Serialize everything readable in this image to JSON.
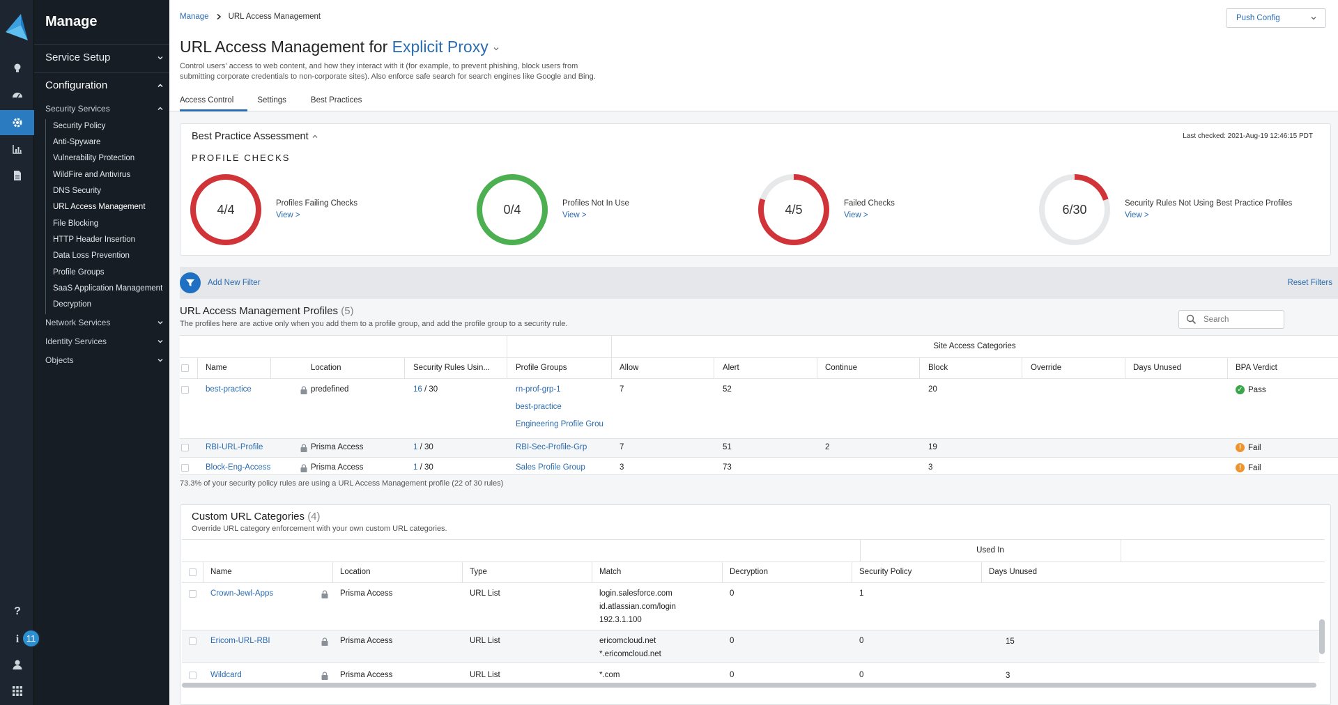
{
  "app": {
    "notification_count": "11"
  },
  "sidebar": {
    "title": "Manage",
    "service_setup": "Service Setup",
    "configuration": "Configuration",
    "security_services": "Security Services",
    "items": [
      "Security Policy",
      "Anti-Spyware",
      "Vulnerability Protection",
      "WildFire and Antivirus",
      "DNS Security",
      "URL Access Management",
      "File Blocking",
      "HTTP Header Insertion",
      "Data Loss Prevention",
      "Profile Groups",
      "SaaS Application Management",
      "Decryption"
    ],
    "network_services": "Network Services",
    "identity_services": "Identity Services",
    "objects": "Objects"
  },
  "header": {
    "breadcrumb_root": "Manage",
    "breadcrumb_current": "URL Access Management",
    "push_config": "Push Config",
    "title_prefix": "URL Access Management for",
    "title_scope": "Explicit Proxy",
    "description_line1": "Control users' access to web content, and how they interact with it (for example, to prevent phishing, block users from",
    "description_line2": "submitting corporate credentials to non-corporate sites). Also enforce safe search for search engines like Google and Bing.",
    "tabs": [
      "Access Control",
      "Settings",
      "Best Practices"
    ]
  },
  "bpa": {
    "title": "Best Practice Assessment",
    "last_checked": "Last checked: 2021-Aug-19 12:46:15 PDT",
    "section": "PROFILE CHECKS",
    "view_label": "View >",
    "checks": [
      {
        "value": "4/4",
        "label": "Profiles Failing Checks",
        "fraction": 1.0,
        "color": "#d13438"
      },
      {
        "value": "0/4",
        "label": "Profiles Not In Use",
        "fraction": 1.0,
        "color": "#4caf50"
      },
      {
        "value": "4/5",
        "label": "Failed Checks",
        "fraction": 0.8,
        "color": "#d13438"
      },
      {
        "value": "6/30",
        "label": "Security Rules Not Using Best Practice Profiles",
        "fraction": 0.2,
        "color": "#d13438"
      }
    ]
  },
  "filter": {
    "add": "Add New Filter",
    "reset": "Reset Filters"
  },
  "profiles": {
    "title": "URL Access Management Profiles",
    "count": "(5)",
    "description": "The profiles here are active only when you add them to a profile group, and add the profile group to a security rule.",
    "search_placeholder": "Search",
    "group_header": "Site Access Categories",
    "columns": [
      "Name",
      "Location",
      "Security Rules Usin...",
      "Profile Groups",
      "Allow",
      "Alert",
      "Continue",
      "Block",
      "Override",
      "Days Unused",
      "BPA Verdict"
    ],
    "rows": [
      {
        "name": "best-practice",
        "location": "predefined",
        "rules_used": "16",
        "rules_total": "/ 30",
        "groups": [
          "rn-prof-grp-1",
          "best-practice",
          "Engineering Profile Grou"
        ],
        "allow": "7",
        "alert": "52",
        "continue": "",
        "block": "20",
        "override": "",
        "days_unused": "",
        "verdict": "Pass"
      },
      {
        "name": "RBI-URL-Profile",
        "location": "Prisma Access",
        "rules_used": "1",
        "rules_total": "/ 30",
        "groups": [
          "RBI-Sec-Profile-Grp"
        ],
        "allow": "7",
        "alert": "51",
        "continue": "2",
        "block": "19",
        "override": "",
        "days_unused": "",
        "verdict": "Fail"
      },
      {
        "name": "Block-Eng-Access",
        "location": "Prisma Access",
        "rules_used": "1",
        "rules_total": "/ 30",
        "groups": [
          "Sales Profile Group"
        ],
        "allow": "3",
        "alert": "73",
        "continue": "",
        "block": "3",
        "override": "",
        "days_unused": "",
        "verdict": "Fail"
      }
    ],
    "footnote": "73.3% of your security policy rules are using a URL Access Management profile (22 of 30 rules)"
  },
  "custom": {
    "title": "Custom URL Categories",
    "count": "(4)",
    "description": "Override URL category enforcement with your own custom URL categories.",
    "group_header": "Used In",
    "columns": [
      "Name",
      "Location",
      "Type",
      "Match",
      "Decryption",
      "Security Policy",
      "Days Unused"
    ],
    "rows": [
      {
        "name": "Crown-Jewl-Apps",
        "location": "Prisma Access",
        "type": "URL List",
        "match": [
          "login.salesforce.com",
          "id.atlassian.com/login",
          "192.3.1.100"
        ],
        "decryption": "0",
        "security_policy": "1",
        "days_unused": ""
      },
      {
        "name": "Ericom-URL-RBI",
        "location": "Prisma Access",
        "type": "URL List",
        "match": [
          "ericomcloud.net",
          "*.ericomcloud.net"
        ],
        "decryption": "0",
        "security_policy": "0",
        "days_unused": "15"
      },
      {
        "name": "Wildcard",
        "location": "Prisma Access",
        "type": "URL List",
        "match": [
          "*.com"
        ],
        "decryption": "0",
        "security_policy": "0",
        "days_unused": "3"
      }
    ]
  }
}
